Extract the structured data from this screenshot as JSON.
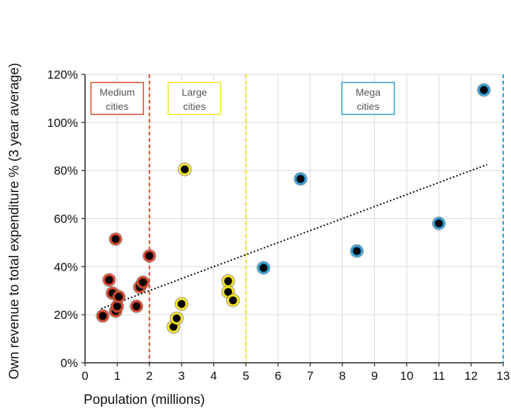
{
  "chart_data": {
    "type": "scatter",
    "xlabel": "Population (millions)",
    "ylabel": "Own revenue to total expenditure % (3 year average)",
    "xlim": [
      0,
      13
    ],
    "ylim": [
      0,
      120
    ],
    "x_ticks": [
      "0",
      "1",
      "2",
      "3",
      "4",
      "5",
      "6",
      "7",
      "8",
      "9",
      "10",
      "11",
      "12",
      "13"
    ],
    "y_ticks": [
      "0%",
      "20%",
      "40%",
      "60%",
      "80%",
      "100%",
      "120%"
    ],
    "grid": true,
    "series": [
      {
        "name": "Medium cities",
        "color": "#d9452b",
        "points": [
          {
            "x": 0.55,
            "y": 19.5
          },
          {
            "x": 0.75,
            "y": 34.5
          },
          {
            "x": 0.85,
            "y": 29
          },
          {
            "x": 0.95,
            "y": 51.5
          },
          {
            "x": 0.95,
            "y": 21.5
          },
          {
            "x": 1.0,
            "y": 23.5
          },
          {
            "x": 1.05,
            "y": 27.5
          },
          {
            "x": 1.6,
            "y": 23.5
          },
          {
            "x": 1.7,
            "y": 31.5
          },
          {
            "x": 1.8,
            "y": 33.5
          },
          {
            "x": 2.0,
            "y": 44.5
          }
        ]
      },
      {
        "name": "Large cities",
        "color": "#f2e21e",
        "points": [
          {
            "x": 2.75,
            "y": 15
          },
          {
            "x": 2.85,
            "y": 18.5
          },
          {
            "x": 3.0,
            "y": 24.5
          },
          {
            "x": 3.1,
            "y": 80.5
          },
          {
            "x": 4.45,
            "y": 34
          },
          {
            "x": 4.45,
            "y": 29.5
          },
          {
            "x": 4.6,
            "y": 26
          }
        ]
      },
      {
        "name": "Mega cities",
        "color": "#2a9bd2",
        "points": [
          {
            "x": 5.55,
            "y": 39.5
          },
          {
            "x": 6.7,
            "y": 76.5
          },
          {
            "x": 8.45,
            "y": 46.5
          },
          {
            "x": 11.0,
            "y": 58
          },
          {
            "x": 12.4,
            "y": 113.5
          }
        ]
      }
    ],
    "trendline": {
      "x1": 0.5,
      "y1": 22.5,
      "x2": 12.5,
      "y2": 82.5,
      "color": "#000000"
    },
    "thresholds": [
      {
        "x": 2,
        "color": "#d9452b"
      },
      {
        "x": 5,
        "color": "#f2e21e"
      },
      {
        "x": 13,
        "color": "#2a9bd2"
      }
    ],
    "zone_labels": [
      {
        "line1": "Medium",
        "line2": "cities",
        "color": "#d9452b",
        "x": 1.0,
        "y": 110
      },
      {
        "line1": "Large",
        "line2": "cities",
        "color": "#f2e21e",
        "x": 3.4,
        "y": 110
      },
      {
        "line1": "Mega",
        "line2": "cities",
        "color": "#2a9bd2",
        "x": 8.8,
        "y": 110
      }
    ]
  }
}
